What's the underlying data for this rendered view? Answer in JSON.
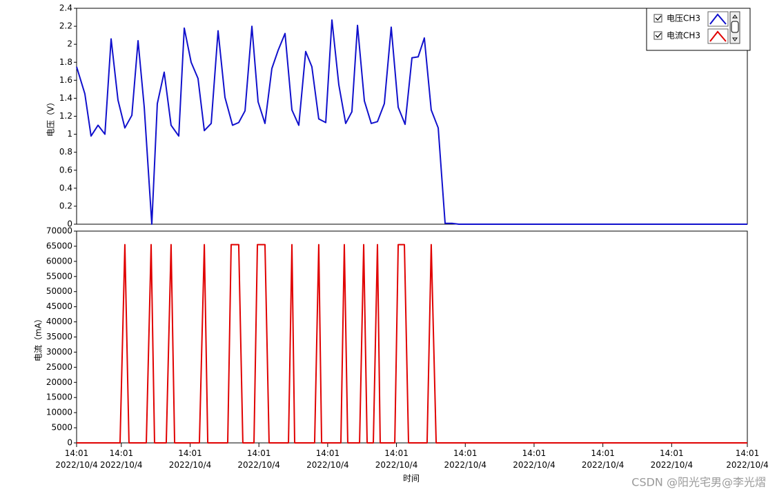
{
  "chart_data": [
    {
      "type": "line",
      "ylabel": "电压（V）",
      "x": [
        0,
        0.72,
        1.26,
        1.87,
        2.47,
        3.01,
        3.61,
        4.21,
        4.82,
        5.36,
        5.9,
        6.56,
        7.04,
        7.64,
        8.24,
        8.91,
        9.39,
        9.99,
        10.59,
        11.14,
        11.74,
        12.34,
        12.94,
        13.6,
        14.14,
        14.69,
        15.29,
        15.83,
        16.43,
        17.03,
        17.57,
        18.18,
        18.78,
        19.38,
        19.98,
        20.52,
        21.12,
        21.73,
        22.27,
        22.87,
        23.47,
        24.01,
        24.5,
        25.1,
        25.7,
        26.24,
        26.84,
        27.44,
        28.05,
        28.65,
        29.25,
        29.79,
        30.33,
        30.93,
        31.54,
        32.14,
        32.74,
        33.34,
        58.5
      ],
      "series": [
        {
          "name": "电压CH3",
          "color": "#1010cc",
          "values": [
            1.75,
            1.45,
            0.98,
            1.1,
            1,
            2.06,
            1.38,
            1.07,
            1.21,
            2.04,
            1.3,
            0,
            1.34,
            1.69,
            1.1,
            0.98,
            2.18,
            1.8,
            1.62,
            1.04,
            1.12,
            2.15,
            1.41,
            1.1,
            1.13,
            1.26,
            2.2,
            1.36,
            1.12,
            1.73,
            1.93,
            2.12,
            1.27,
            1.1,
            1.92,
            1.75,
            1.17,
            1.13,
            2.27,
            1.55,
            1.12,
            1.25,
            2.21,
            1.37,
            1.12,
            1.14,
            1.34,
            2.19,
            1.3,
            1.11,
            1.85,
            1.86,
            2.07,
            1.27,
            1.07,
            0.01,
            0.01,
            0,
            0
          ]
        }
      ],
      "xlim": [
        0,
        58.5
      ],
      "ylim": [
        0,
        2.4
      ],
      "yticks": [
        0,
        0.2,
        0.4,
        0.6,
        0.8,
        1,
        1.2,
        1.4,
        1.6,
        1.8,
        2,
        2.2,
        2.4
      ]
    },
    {
      "type": "line",
      "ylabel": "电流（mA）",
      "xlabel": "时间",
      "x": [
        0,
        3.79,
        4.21,
        4.57,
        6.08,
        6.5,
        6.8,
        7.82,
        8.24,
        8.55,
        10.71,
        11.14,
        11.44,
        13.18,
        13.48,
        14.14,
        14.5,
        15.47,
        15.77,
        16.43,
        16.79,
        18.48,
        18.78,
        19.02,
        20.76,
        21.12,
        21.37,
        23.05,
        23.35,
        23.65,
        24.68,
        25.04,
        25.34,
        25.88,
        26.24,
        26.48,
        27.75,
        28.05,
        28.59,
        28.95,
        30.57,
        30.93,
        31.36,
        58.5
      ],
      "series": [
        {
          "name": "电流CH3",
          "color": "#e00000",
          "values": [
            0,
            0,
            65535,
            0,
            0,
            65535,
            0,
            0,
            65535,
            0,
            0,
            65535,
            0,
            0,
            65535,
            65535,
            0,
            0,
            65535,
            65535,
            0,
            0,
            65535,
            0,
            0,
            65535,
            0,
            0,
            65535,
            0,
            0,
            65535,
            0,
            0,
            65535,
            0,
            0,
            65535,
            65535,
            0,
            0,
            65535,
            0,
            0
          ]
        }
      ],
      "xlim": [
        0,
        58.5
      ],
      "ylim": [
        0,
        70000
      ],
      "yticks": [
        0,
        5000,
        10000,
        15000,
        20000,
        25000,
        30000,
        35000,
        40000,
        45000,
        50000,
        55000,
        60000,
        65000,
        70000
      ],
      "xticks": [
        {
          "value": 0,
          "label": "14:01\n2022/10/4"
        },
        {
          "value": 3.9,
          "label": "14:01\n2022/10/4"
        },
        {
          "value": 9.9,
          "label": "14:01\n2022/10/4"
        },
        {
          "value": 15.9,
          "label": "14:01\n2022/10/4"
        },
        {
          "value": 21.9,
          "label": "14:01\n2022/10/4"
        },
        {
          "value": 27.9,
          "label": "14:01\n2022/10/4"
        },
        {
          "value": 33.9,
          "label": "14:01\n2022/10/4"
        },
        {
          "value": 39.9,
          "label": "14:01\n2022/10/4"
        },
        {
          "value": 45.9,
          "label": "14:01\n2022/10/4"
        },
        {
          "value": 51.9,
          "label": "14:01\n2022/10/4"
        },
        {
          "value": 58.5,
          "label": "14:01\n2022/10/4"
        }
      ]
    }
  ],
  "watermark": "CSDN @阳光宅男@李光熠"
}
